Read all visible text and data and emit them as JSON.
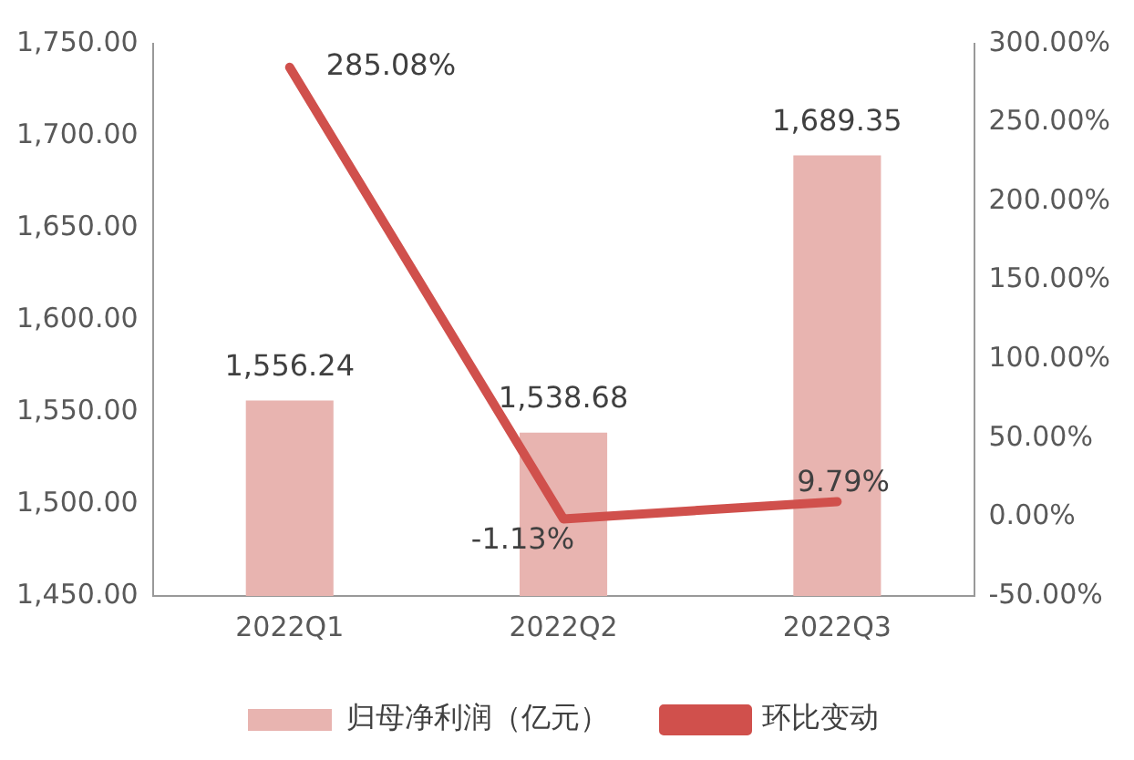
{
  "chart_data": {
    "type": "bar",
    "categories": [
      "2022Q1",
      "2022Q2",
      "2022Q3"
    ],
    "series": [
      {
        "name": "归母净利润（亿元）",
        "color": "#e8b4b0",
        "values": [
          1556.24,
          1538.68,
          1689.35
        ],
        "value_labels": [
          "1,556.24",
          "1,538.68",
          "1,689.35"
        ]
      },
      {
        "name": "环比变动",
        "type": "line",
        "axis": "y2",
        "color": "#d0504c",
        "values": [
          285.08,
          -1.13,
          9.79
        ],
        "value_labels": [
          "285.08%",
          "-1.13%",
          "9.79%"
        ]
      }
    ],
    "ylim": [
      1450,
      1750
    ],
    "yticks": [
      {
        "value": 1450,
        "label": "1,450.00"
      },
      {
        "value": 1500,
        "label": "1,500.00"
      },
      {
        "value": 1550,
        "label": "1,550.00"
      },
      {
        "value": 1600,
        "label": "1,600.00"
      },
      {
        "value": 1650,
        "label": "1,650.00"
      },
      {
        "value": 1700,
        "label": "1,700.00"
      },
      {
        "value": 1750,
        "label": "1,750.00"
      }
    ],
    "y2lim": [
      -50,
      300
    ],
    "y2ticks": [
      {
        "value": -50,
        "label": "-50.00%"
      },
      {
        "value": 0,
        "label": "0.00%"
      },
      {
        "value": 50,
        "label": "50.00%"
      },
      {
        "value": 100,
        "label": "100.00%"
      },
      {
        "value": 150,
        "label": "150.00%"
      },
      {
        "value": 200,
        "label": "200.00%"
      },
      {
        "value": 250,
        "label": "250.00%"
      },
      {
        "value": 300,
        "label": "300.00%"
      }
    ],
    "legend": "bottom",
    "grid": false,
    "line_style": "solid",
    "marker": "none"
  }
}
